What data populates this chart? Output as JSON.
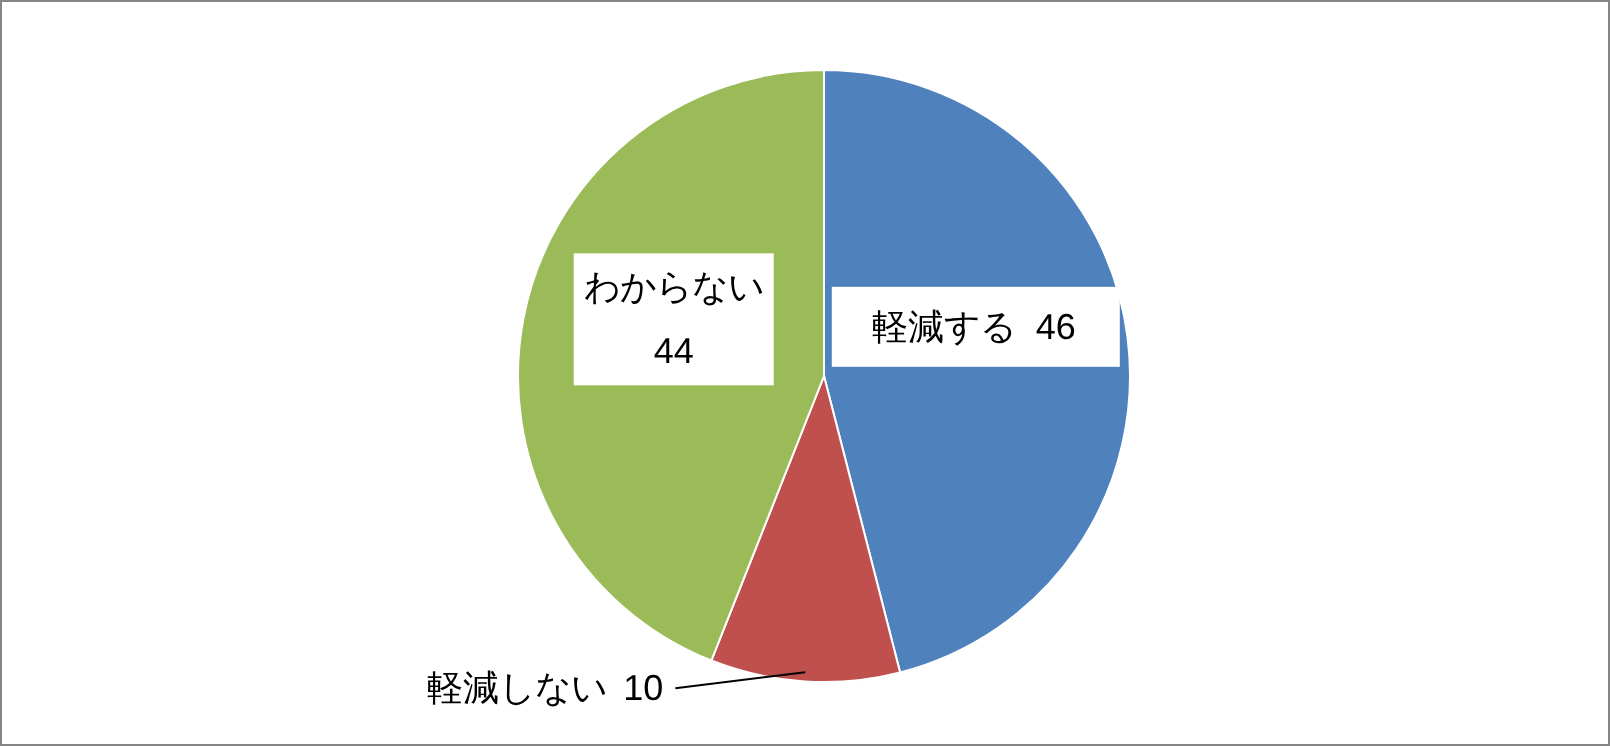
{
  "chart_data": {
    "type": "pie",
    "categories": [
      "軽減する",
      "軽減しない",
      "わからない"
    ],
    "values": [
      46,
      10,
      44
    ],
    "colors": [
      "#4f81bd",
      "#c0504d",
      "#9bbb59"
    ],
    "data_labels": true
  }
}
